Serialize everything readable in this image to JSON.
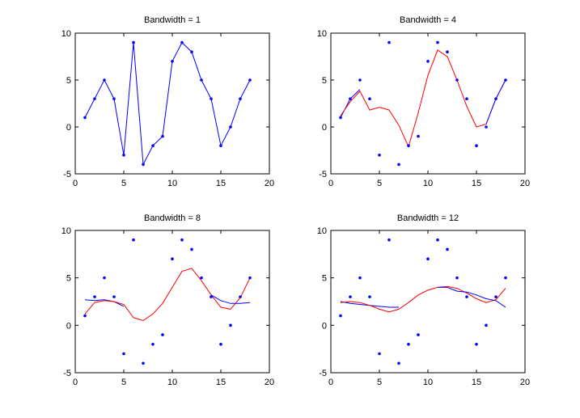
{
  "chart_data": [
    {
      "type": "scatter",
      "title": "Bandwidth = 1",
      "xlim": [
        0,
        20
      ],
      "ylim": [
        -5,
        10
      ],
      "xticks": [
        0,
        5,
        10,
        15,
        20
      ],
      "yticks": [
        -5,
        0,
        5,
        10
      ],
      "points": {
        "x": [
          1,
          2,
          3,
          4,
          5,
          6,
          7,
          8,
          9,
          10,
          11,
          12,
          13,
          14,
          15,
          16,
          17,
          18
        ],
        "y": [
          1,
          3,
          5,
          3,
          -3,
          9,
          -4,
          -2,
          -1,
          7,
          9,
          8,
          5,
          3,
          -2,
          0,
          3,
          5
        ],
        "color": "#0000ff"
      },
      "series": [
        {
          "color": "#0000ff",
          "x": [
            1,
            2,
            3,
            4,
            5,
            6,
            7,
            8,
            9,
            10,
            11,
            12,
            13,
            14,
            15,
            16,
            17,
            18
          ],
          "y": [
            1,
            3,
            5,
            3,
            -3,
            9,
            -4,
            -2,
            -1,
            7,
            9,
            8,
            5,
            3,
            -2,
            0,
            3,
            5
          ]
        }
      ]
    },
    {
      "type": "scatter",
      "title": "Bandwidth = 4",
      "xlim": [
        0,
        20
      ],
      "ylim": [
        -5,
        10
      ],
      "xticks": [
        0,
        5,
        10,
        15,
        20
      ],
      "yticks": [
        -5,
        0,
        5,
        10
      ],
      "points": {
        "x": [
          1,
          2,
          3,
          4,
          5,
          6,
          7,
          8,
          9,
          10,
          11,
          12,
          13,
          14,
          15,
          16,
          17,
          18
        ],
        "y": [
          1,
          3,
          5,
          3,
          -3,
          9,
          -4,
          -2,
          -1,
          7,
          9,
          8,
          5,
          3,
          -2,
          0,
          3,
          5
        ],
        "color": "#0000ff"
      },
      "series": [
        {
          "color": "#0000ff",
          "x": [
            1,
            2,
            3
          ],
          "y": [
            1,
            3,
            4
          ]
        },
        {
          "color": "#ff0000",
          "x": [
            1,
            2,
            3,
            4,
            5,
            6,
            7,
            8,
            9,
            10,
            11,
            12,
            13,
            14,
            15,
            16,
            17,
            18
          ],
          "y": [
            1.2,
            2.7,
            3.8,
            1.8,
            2.1,
            1.8,
            0.2,
            -2.1,
            1.5,
            5.5,
            8.2,
            7.5,
            5.0,
            2.2,
            0.0,
            0.3,
            3.0,
            5.0
          ]
        },
        {
          "color": "#0000ff",
          "x": [
            16,
            17,
            18
          ],
          "y": [
            0.3,
            3.0,
            5.0
          ]
        }
      ]
    },
    {
      "type": "scatter",
      "title": "Bandwidth = 8",
      "xlim": [
        0,
        20
      ],
      "ylim": [
        -5,
        10
      ],
      "xticks": [
        0,
        5,
        10,
        15,
        20
      ],
      "yticks": [
        -5,
        0,
        5,
        10
      ],
      "points": {
        "x": [
          1,
          2,
          3,
          4,
          5,
          6,
          7,
          8,
          9,
          10,
          11,
          12,
          13,
          14,
          15,
          16,
          17,
          18
        ],
        "y": [
          1,
          3,
          5,
          3,
          -3,
          9,
          -4,
          -2,
          -1,
          7,
          9,
          8,
          5,
          3,
          -2,
          0,
          3,
          5
        ],
        "color": "#0000ff"
      },
      "series": [
        {
          "color": "#0000ff",
          "x": [
            1,
            2,
            3,
            4,
            5
          ],
          "y": [
            2.7,
            2.6,
            2.7,
            2.5,
            2.0
          ]
        },
        {
          "color": "#ff0000",
          "x": [
            1,
            2,
            3,
            4,
            5,
            6,
            7,
            8,
            9,
            10,
            11,
            12,
            13,
            14,
            15,
            16,
            17,
            18
          ],
          "y": [
            1.2,
            2.4,
            2.6,
            2.5,
            2.2,
            0.8,
            0.5,
            1.2,
            2.3,
            4.0,
            5.7,
            6.0,
            4.7,
            3.2,
            1.9,
            1.7,
            2.9,
            5.0
          ]
        },
        {
          "color": "#0000ff",
          "x": [
            14,
            15,
            16,
            17,
            18
          ],
          "y": [
            3.2,
            2.6,
            2.3,
            2.3,
            2.4
          ]
        }
      ]
    },
    {
      "type": "scatter",
      "title": "Bandwidth = 12",
      "xlim": [
        0,
        20
      ],
      "ylim": [
        -5,
        10
      ],
      "xticks": [
        0,
        5,
        10,
        15,
        20
      ],
      "yticks": [
        -5,
        0,
        5,
        10
      ],
      "points": {
        "x": [
          1,
          2,
          3,
          4,
          5,
          6,
          7,
          8,
          9,
          10,
          11,
          12,
          13,
          14,
          15,
          16,
          17,
          18
        ],
        "y": [
          1,
          3,
          5,
          3,
          -3,
          9,
          -4,
          -2,
          -1,
          7,
          9,
          8,
          5,
          3,
          -2,
          0,
          3,
          5
        ],
        "color": "#0000ff"
      },
      "series": [
        {
          "color": "#0000ff",
          "x": [
            1,
            2,
            3,
            4,
            5,
            6,
            7
          ],
          "y": [
            2.5,
            2.3,
            2.2,
            2.1,
            2.0,
            1.9,
            1.9
          ]
        },
        {
          "color": "#ff0000",
          "x": [
            1,
            2,
            3,
            4,
            5,
            6,
            7,
            8,
            9,
            10,
            11,
            12,
            13,
            14,
            15,
            16,
            17,
            18
          ],
          "y": [
            2.4,
            2.5,
            2.4,
            2.1,
            1.7,
            1.4,
            1.7,
            2.4,
            3.2,
            3.7,
            4.0,
            4.1,
            3.9,
            3.4,
            2.8,
            2.4,
            2.7,
            3.9
          ]
        },
        {
          "color": "#0000ff",
          "x": [
            11,
            12,
            13,
            14,
            15,
            16,
            17,
            18
          ],
          "y": [
            4.0,
            4.0,
            3.6,
            3.5,
            3.2,
            2.8,
            2.6,
            1.9
          ]
        }
      ]
    }
  ]
}
